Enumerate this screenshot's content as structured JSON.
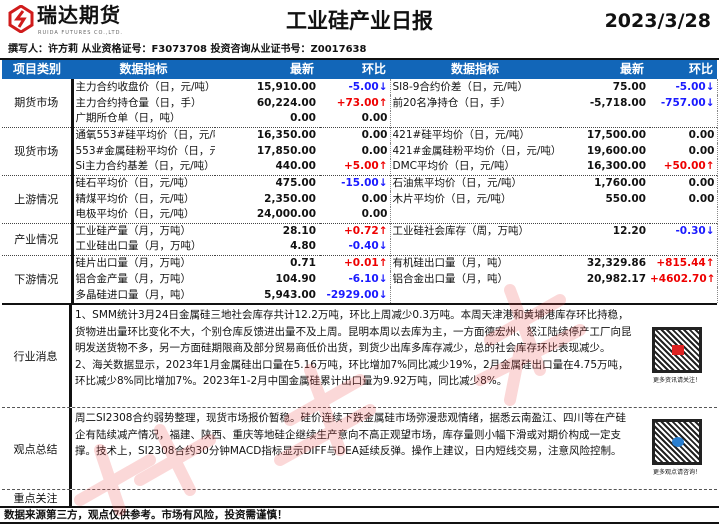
{
  "header": {
    "logo_cn": "瑞达期货",
    "logo_en": "RUIDA FUTURES CO.,LTD.",
    "title": "工业硅产业日报",
    "date": "2023/3/28",
    "author": "撰写人：许方莉   从业资格证号：F3073708    投资咨询从业证书号：Z0017638"
  },
  "colors": {
    "header_bg": "#1266b8",
    "up": "#e00000",
    "down": "#1a1aff"
  },
  "columns": [
    "项目类别",
    "数据指标",
    "最新",
    "环比",
    "数据指标",
    "最新",
    "环比"
  ],
  "sections": [
    {
      "category": "期货市场",
      "rows": [
        {
          "l_name": "主力合约收盘价（日，元/吨）",
          "l_val": "15,910.00",
          "l_chg": "-5.00↓",
          "l_dir": "down",
          "r_name": "SI8-9合约价差（日，元/吨）",
          "r_val": "75.00",
          "r_chg": "-5.00↓",
          "r_dir": "down"
        },
        {
          "l_name": "主力合约持仓量（日，手）",
          "l_val": "60,224.00",
          "l_chg": "+73.00↑",
          "l_dir": "up",
          "r_name": "前20名净持仓（日，手）",
          "r_val": "-5,718.00",
          "r_chg": "-757.00↓",
          "r_dir": "down"
        },
        {
          "l_name": "广期所仓单（日，吨）",
          "l_val": "0.00",
          "l_chg": "0.00",
          "l_dir": "",
          "r_name": "",
          "r_val": "",
          "r_chg": "",
          "r_dir": ""
        }
      ]
    },
    {
      "category": "现货市场",
      "rows": [
        {
          "l_name": "通氧553#硅平均价（日，元/吨）",
          "l_val": "16,350.00",
          "l_chg": "0.00",
          "l_dir": "",
          "r_name": "421#硅平均价（日，元/吨）",
          "r_val": "17,500.00",
          "r_chg": "0.00",
          "r_dir": ""
        },
        {
          "l_name": "553#金属硅粉平均价（日，元/吨）",
          "l_val": "17,850.00",
          "l_chg": "0.00",
          "l_dir": "",
          "r_name": "421#金属硅粉平均价（日，元/吨）",
          "r_val": "19,600.00",
          "r_chg": "0.00",
          "r_dir": ""
        },
        {
          "l_name": "Si主力合约基差（日，元/吨）",
          "l_val": "440.00",
          "l_chg": "+5.00↑",
          "l_dir": "up",
          "r_name": "DMC平均价（日，元/吨）",
          "r_val": "16,300.00",
          "r_chg": "+50.00↑",
          "r_dir": "up"
        }
      ]
    },
    {
      "category": "上游情况",
      "rows": [
        {
          "l_name": "硅石平均价（日，元/吨）",
          "l_val": "475.00",
          "l_chg": "-15.00↓",
          "l_dir": "down",
          "r_name": "石油焦平均价（日，元/吨）",
          "r_val": "1,760.00",
          "r_chg": "0.00",
          "r_dir": ""
        },
        {
          "l_name": "精煤平均价（日，元/吨）",
          "l_val": "2,350.00",
          "l_chg": "0.00",
          "l_dir": "",
          "r_name": "木片平均价（日，元/吨）",
          "r_val": "550.00",
          "r_chg": "0.00",
          "r_dir": ""
        },
        {
          "l_name": "电极平均价（日，元/吨）",
          "l_val": "24,000.00",
          "l_chg": "0.00",
          "l_dir": "",
          "r_name": "",
          "r_val": "",
          "r_chg": "",
          "r_dir": ""
        }
      ]
    },
    {
      "category": "产业情况",
      "rows": [
        {
          "l_name": "工业硅产量（月，万吨）",
          "l_val": "28.10",
          "l_chg": "+0.72↑",
          "l_dir": "up",
          "r_name": "工业硅社会库存（周，万吨）",
          "r_val": "12.20",
          "r_chg": "-0.30↓",
          "r_dir": "down"
        },
        {
          "l_name": "工业硅出口量（月，万吨）",
          "l_val": "4.80",
          "l_chg": "-0.40↓",
          "l_dir": "down",
          "r_name": "",
          "r_val": "",
          "r_chg": "",
          "r_dir": ""
        }
      ]
    },
    {
      "category": "下游情况",
      "rows": [
        {
          "l_name": "硅片出口量（月，万吨）",
          "l_val": "0.71",
          "l_chg": "+0.01↑",
          "l_dir": "up",
          "r_name": "有机硅出口量（月，吨）",
          "r_val": "32,329.86",
          "r_chg": "+815.44↑",
          "r_dir": "up"
        },
        {
          "l_name": "铝合金产量（月，万吨）",
          "l_val": "104.90",
          "l_chg": "-6.10↓",
          "l_dir": "down",
          "r_name": "铝合金出口量（月，吨）",
          "r_val": "20,982.17",
          "r_chg": "+4602.70↑",
          "r_dir": "up"
        },
        {
          "l_name": "多晶硅进口量（月，吨）",
          "l_val": "5,943.00",
          "l_chg": "-2929.00↓",
          "l_dir": "down",
          "r_name": "",
          "r_val": "",
          "r_chg": "",
          "r_dir": ""
        }
      ]
    }
  ],
  "news": {
    "label": "行业消息",
    "p1": "1、SMM统计3月24日金属硅三地社会库存共计12.2万吨，环比上周减少0.3万吨。本周天津港和黄埔港库存环比持稳，货物进出量环比变化不大，个别仓库反馈进出量不及上周。昆明本周以去库为主，一方面德宏州、怒江陆续停产工厂向昆明发送货物不多，另一方面硅期限商及部分贸易商低价出货，到货少出库多库存减少，总的社会库存环比表现减少。",
    "p2": "2、海关数据显示，2023年1月金属硅出口量在5.16万吨，环比增加7%同比减少19%，2月金属硅出口量在4.75万吨，环比减少8%同比增加7%。2023年1-2月中国金属硅累计出口量为9.92万吨，同比减少8%。",
    "qr_caption": "更多资讯请关注！"
  },
  "view": {
    "label": "观点总结",
    "text": "周二SI2308合约弱势整理，现货市场报价暂稳。硅价连续下跌金属硅市场弥漫悲观情绪，据悉云南盈江、四川等在产硅企有陆续减产情况，福建、陕西、重庆等地硅企继续生产意向不高正观望市场，库存量则小幅下滑或对期价构成一定支撑。技术上，SI2308合约30分钟MACD指标显示DIFF与DEA延续反弹。操作上建议，日内短线交易，注意风险控制。",
    "qr_caption": "更多观点请咨询！"
  },
  "focus": {
    "label": "重点关注",
    "text": ""
  },
  "footer": "数据来源第三方，观点仅供参考。市场有风险，投资需谨慎！",
  "watermark": "瑞达研究"
}
